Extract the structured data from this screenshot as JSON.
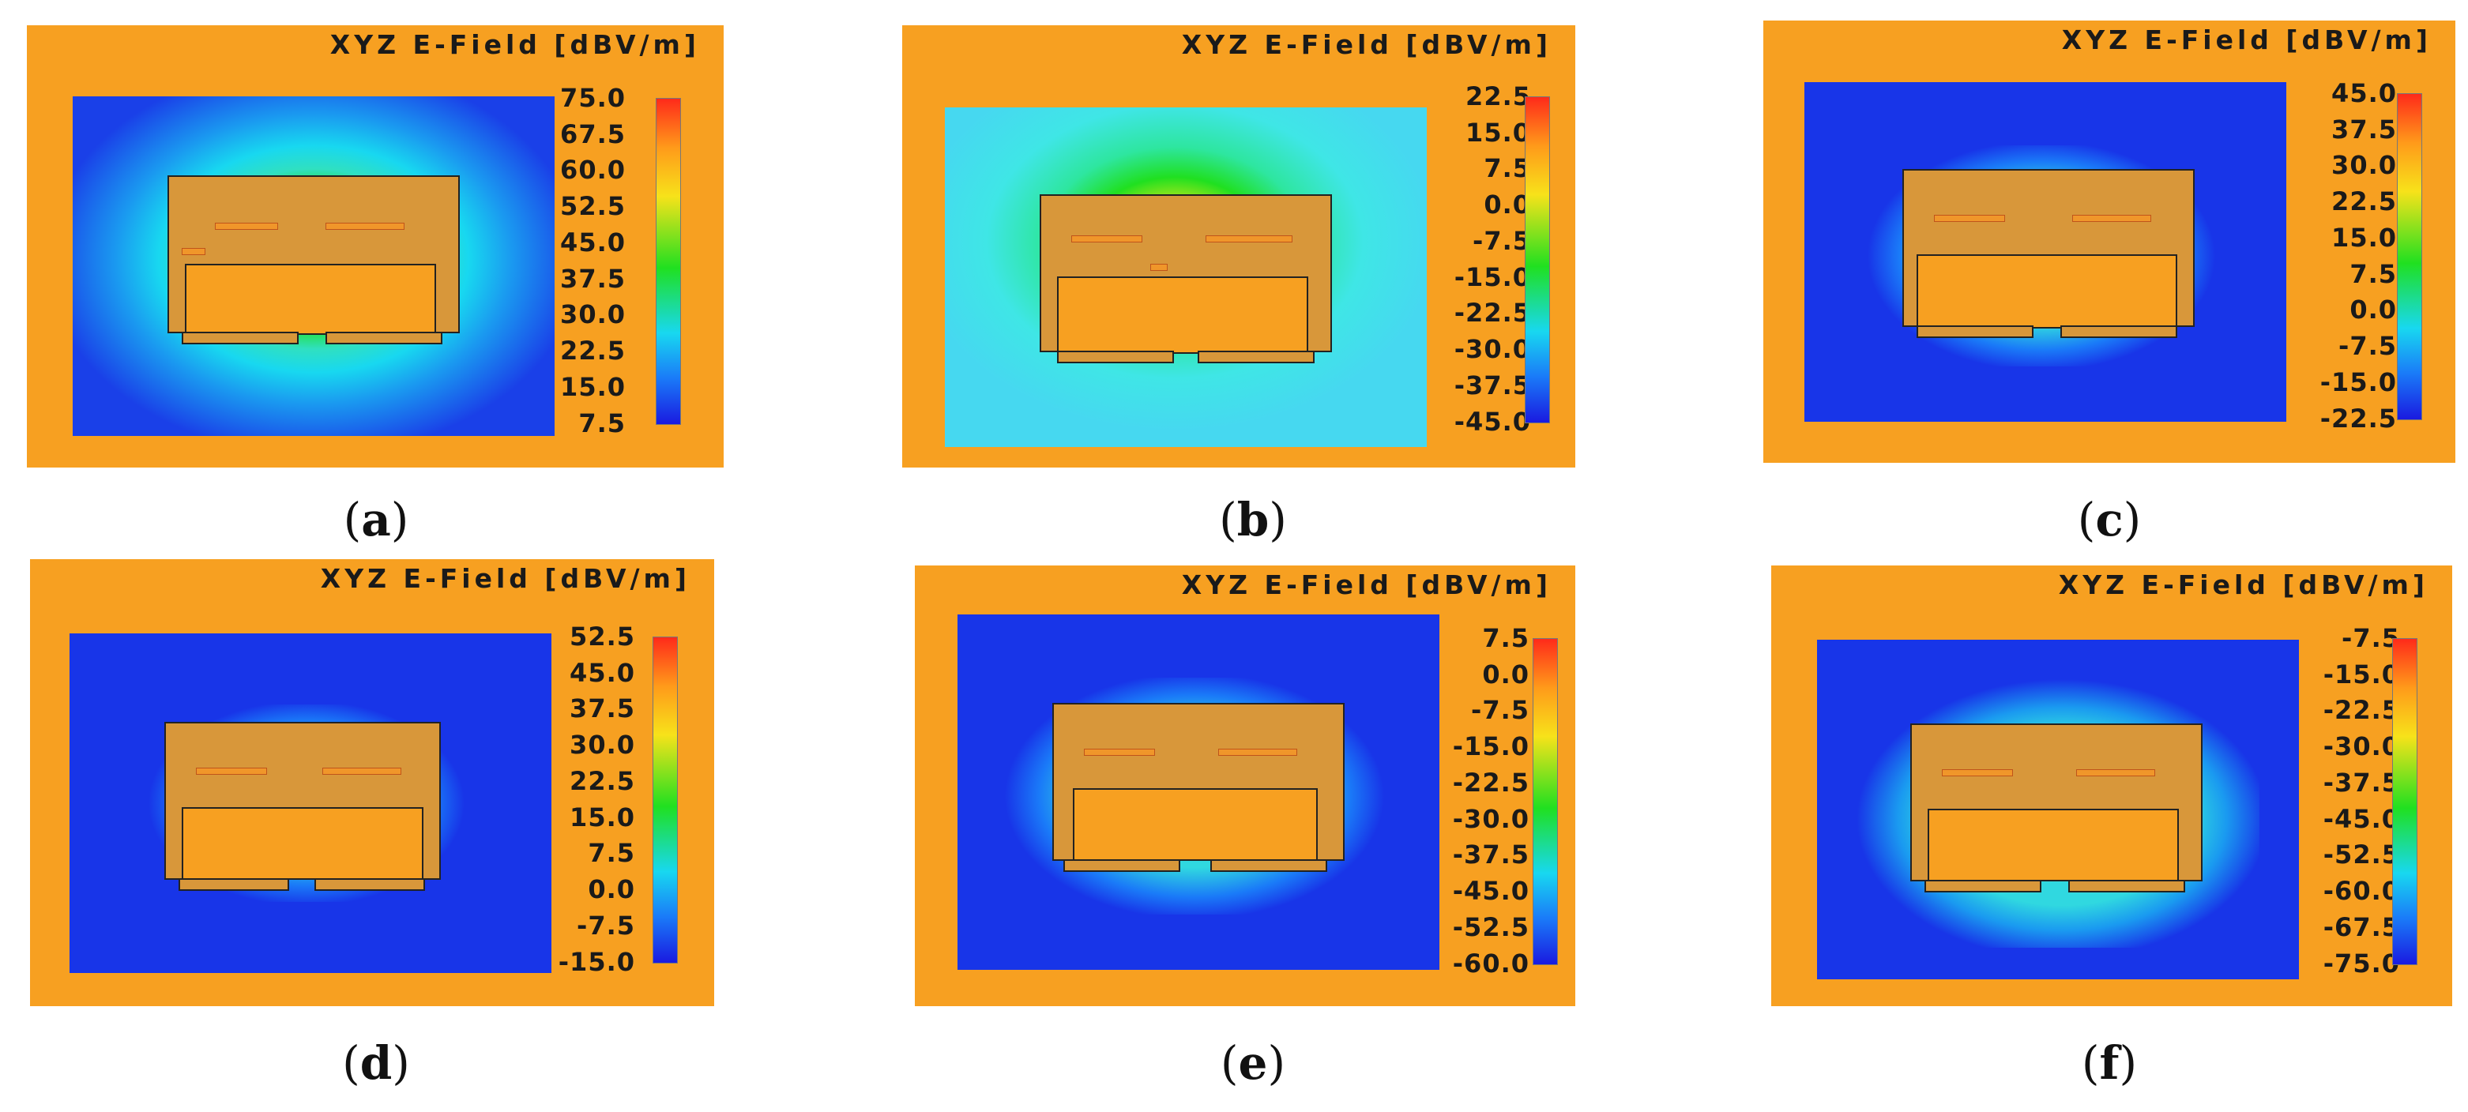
{
  "panels": [
    {
      "id": "a",
      "caption_letter": "a",
      "title": "XYZ E-Field [dBV/m]",
      "scale": [
        "75.0",
        "67.5",
        "60.0",
        "52.5",
        "45.0",
        "37.5",
        "30.0",
        "22.5",
        "15.0",
        "7.5"
      ],
      "spread": "wide",
      "background": "#1a40e8"
    },
    {
      "id": "b",
      "caption_letter": "b",
      "title": "XYZ E-Field [dBV/m]",
      "scale": [
        "22.5",
        "15.0",
        "7.5",
        "0.0",
        "-7.5",
        "-15.0",
        "-22.5",
        "-30.0",
        "-37.5",
        "-45.0"
      ],
      "spread": "very-wide",
      "background": "#3fe6e6"
    },
    {
      "id": "c",
      "caption_letter": "c",
      "title": "XYZ E-Field [dBV/m]",
      "scale": [
        "45.0",
        "37.5",
        "30.0",
        "22.5",
        "15.0",
        "7.5",
        "0.0",
        "-7.5",
        "-15.0",
        "-22.5"
      ],
      "spread": "tight",
      "background": "#1835e8"
    },
    {
      "id": "d",
      "caption_letter": "d",
      "title": "XYZ E-Field [dBV/m]",
      "scale": [
        "52.5",
        "45.0",
        "37.5",
        "30.0",
        "22.5",
        "15.0",
        "7.5",
        "0.0",
        "-7.5",
        "-15.0"
      ],
      "spread": "tight",
      "background": "#1835e8"
    },
    {
      "id": "e",
      "caption_letter": "e",
      "title": "XYZ E-Field [dBV/m]",
      "scale": [
        "7.5",
        "0.0",
        "-7.5",
        "-15.0",
        "-22.5",
        "-30.0",
        "-37.5",
        "-45.0",
        "-52.5",
        "-60.0"
      ],
      "spread": "medium",
      "background": "#1835e8"
    },
    {
      "id": "f",
      "caption_letter": "f",
      "title": "XYZ E-Field [dBV/m]",
      "scale": [
        "-7.5",
        "-15.0",
        "-22.5",
        "-30.0",
        "-37.5",
        "-45.0",
        "-52.5",
        "-60.0",
        "-67.5",
        "-75.0"
      ],
      "spread": "medium",
      "background": "#1835e8"
    }
  ]
}
